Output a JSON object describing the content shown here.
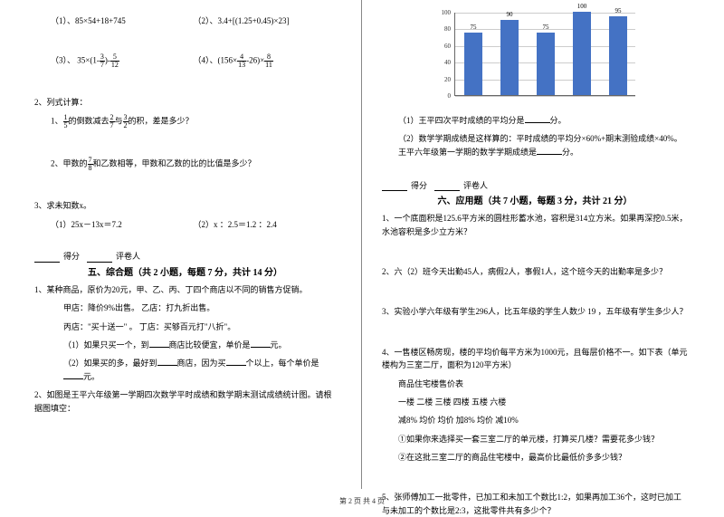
{
  "left": {
    "expr1a": "（1）、85×54+18+745",
    "expr1b": "（2）、3.4+[(1.25+0.45)×23]",
    "expr2a_pre": "（3）、 35×(1-",
    "expr2a_mid": ")-",
    "expr2b_pre": "（4）、(156×",
    "expr2b_mid": "-26)×",
    "q2_title": "2、列式计算：",
    "q2_1_a": "1、",
    "q2_1_b": "的倒数减去",
    "q2_1_c": "与",
    "q2_1_d": "的积，差是多少？",
    "q2_2_a": "2、甲数的",
    "q2_2_b": "和乙数相等，甲数和乙数的比的比值是多少？",
    "q3_title": "3、求未知数x。",
    "q3_1": "（1）25x－13x＝7.2",
    "q3_2": "（2）x ：2.5＝1.2 ：2.4",
    "score_l1": "得分",
    "score_l2": "评卷人",
    "sect5": "五、综合题（共 2 小题，每题 7 分，共计 14 分）",
    "c1_1": "1、某种商品，原价为20元，甲、乙、丙、丁四个商店以不同的销售方促销。",
    "c1_2": "甲店：降价9%出售。    乙店：打九折出售。",
    "c1_3": "丙店：\"买十送一\" 。   丁店：买够百元打\"八折\"。",
    "c1_4a": "（1）如果只买一个，到",
    "c1_4b": "商店比较便宜，单价是",
    "c1_4c": "元。",
    "c1_5a": "（2）如果买的多，最好到",
    "c1_5b": "商店，因为买",
    "c1_5c": "个以上，每个单价是",
    "c1_5d": "元。",
    "c2": "2、如图是王平六年级第一学期四次数学平时成绩和数学期末测试成绩统计图。请根据图填空：",
    "frac": {
      "f3_7n": "3",
      "f3_7d": "7",
      "f5_12n": "5",
      "f5_12d": "12",
      "f4_13n": "4",
      "f4_13d": "13",
      "f8_11n": "8",
      "f8_11d": "11",
      "f1_5n": "1",
      "f1_5d": "5",
      "f2_7n": "2",
      "f2_7d": "7",
      "f3_2n": "3",
      "f3_2d": "2",
      "f7_8n": "7",
      "f7_8d": "8"
    }
  },
  "right": {
    "chart": {
      "ymax": 100,
      "ystep": 20,
      "bars": [
        75,
        90,
        75,
        100,
        95
      ],
      "bar_color": "#4472c4",
      "grid_color": "#cccccc",
      "axis_color": "#666666"
    },
    "r1a": "（1）王平四次平时成绩的平均分是",
    "r1b": "分。",
    "r2a": "（2）数学学期成绩是这样算的：平时成绩的平均分×60%+期末测验成绩×40%。王平六年级第一学期的数学学期成绩是",
    "r2b": "分。",
    "score_l1": "得分",
    "score_l2": "评卷人",
    "sect6": "六、应用题（共 7 小题，每题 3 分，共计 21 分）",
    "a1": "1、一个底面积是125.6平方米的圆柱形蓄水池，容积是314立方米。如果再深挖0.5米，水池容积是多少立方米？",
    "a2": "2、六（2）班今天出勤45人，病假2人，事假1人，这个班今天的出勤率是多少？",
    "a3": "3、实验小学六年级有学生296人，比五年级的学生人数少 19 ，五年级有学生多少人？",
    "a4_1": "4、一售楼区畅房现，楼的平均价每平方米为1000元，且每层价格不一。如下表（单元楼构为三室二厅，面积为120平方米）",
    "a4_2": "商品住宅楼售价表",
    "a4_3": "一楼    二楼    三楼    四楼    五楼    六楼",
    "a4_4": "减8%    均价    均价    加8%    均价    减10%",
    "a4_5": "①如果你来选择买一套三室二厅的单元楼，打算买几楼？需要花多少钱？",
    "a4_6": "②在这批三室二厅的商品住宅楼中，最高价比最低价多多少钱？",
    "a5": "5、张师傅加工一批零件，已加工和未加工个数比1:2，如果再加工36个，这时已加工与未加工的个数比是2:3，这批零件共有多少个？"
  },
  "footer": "第 2 页 共 4 页"
}
